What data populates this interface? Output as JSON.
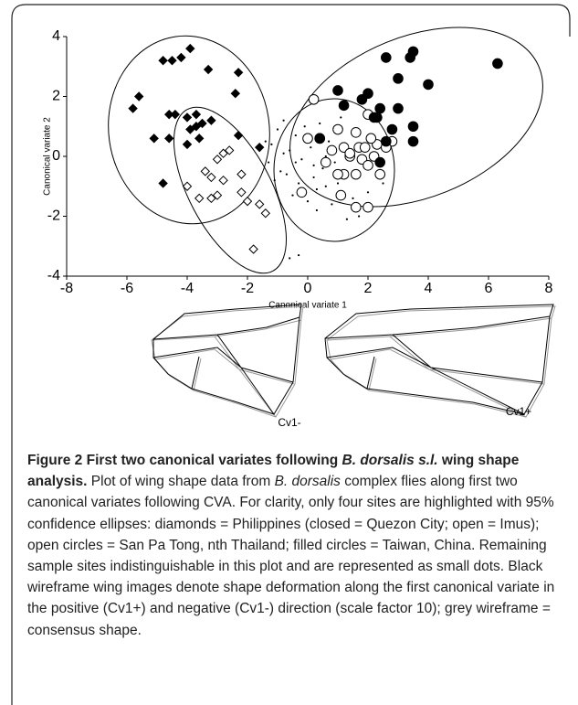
{
  "chart_data": {
    "type": "scatter",
    "xlabel": "Canonical variate 1",
    "ylabel": "Canonical variate 2",
    "xlim": [
      -8,
      8
    ],
    "ylim": [
      -4,
      4
    ],
    "xticks": [
      -8,
      -6,
      -4,
      -2,
      0,
      2,
      4,
      6,
      8
    ],
    "yticks": [
      -4,
      -2,
      0,
      2,
      4
    ],
    "series": [
      {
        "marker": "dot",
        "filled": true,
        "color": "#000",
        "x": [
          -1.4,
          -1.3,
          -1.2,
          -1.0,
          -0.9,
          -0.8,
          -0.7,
          -0.6,
          -0.5,
          -0.4,
          -0.3,
          -0.2,
          -0.1,
          0.0,
          0.1,
          0.2,
          0.3,
          0.4,
          0.5,
          0.6,
          0.7,
          0.8,
          0.9,
          1.0,
          1.1,
          1.3,
          1.5,
          1.7,
          2.0,
          2.5,
          -0.6,
          -0.3,
          0.2,
          0.6,
          0.9,
          -1.1,
          -0.8,
          -0.4,
          0.3,
          1.2
        ],
        "values": [
          0.5,
          -0.2,
          0.4,
          0.9,
          -0.5,
          1.2,
          -0.6,
          0.2,
          -1.3,
          0.7,
          -0.9,
          -0.1,
          1.0,
          -1.5,
          0.3,
          -0.7,
          -1.8,
          1.1,
          -0.4,
          -1.0,
          0.5,
          -1.6,
          -0.2,
          -0.9,
          1.3,
          -2.1,
          -1.4,
          -2.0,
          -1.2,
          -0.9,
          -3.4,
          -3.3,
          -0.3,
          0.0,
          0.8,
          -0.8,
          0.1,
          -0.2,
          -1.1,
          0.4
        ]
      },
      {
        "marker": "diamond",
        "filled": true,
        "color": "#000",
        "x": [
          -5.8,
          -5.6,
          -4.8,
          -4.5,
          -4.2,
          -3.9,
          -3.3,
          -2.4,
          -2.3,
          -5.1,
          -4.6,
          -4.4,
          -4.0,
          -3.7,
          -3.5,
          -3.7,
          -3.9,
          -3.6,
          -4.0,
          -4.6,
          -3.2,
          -2.3,
          -1.6,
          -4.8
        ],
        "values": [
          1.6,
          2.0,
          3.2,
          3.2,
          3.3,
          3.6,
          2.9,
          2.1,
          2.8,
          0.6,
          1.4,
          1.4,
          1.3,
          1.0,
          1.1,
          1.4,
          0.9,
          0.6,
          0.4,
          0.6,
          1.2,
          0.7,
          0.3,
          -0.9
        ]
      },
      {
        "marker": "diamond",
        "filled": false,
        "color": "#000",
        "x": [
          -4.0,
          -3.4,
          -3.0,
          -2.8,
          -2.6,
          -3.2,
          -2.8,
          -2.2,
          -3.6,
          -3.0,
          -3.2,
          -2.2,
          -2.0,
          -1.6,
          -1.4,
          -1.8
        ],
        "values": [
          -1.0,
          -0.5,
          -0.1,
          0.1,
          0.2,
          -0.7,
          -0.8,
          -0.6,
          -1.4,
          -1.3,
          -1.4,
          -1.2,
          -1.5,
          -1.6,
          -1.9,
          -3.1
        ]
      },
      {
        "marker": "circle",
        "filled": false,
        "color": "#000",
        "x": [
          0.2,
          0.4,
          0.0,
          1.0,
          1.2,
          1.6,
          2.0,
          1.7,
          1.9,
          2.2,
          1.4,
          1.8,
          2.0,
          2.4,
          1.6,
          0.6,
          1.1,
          1.6,
          2.0,
          -0.2,
          1.2,
          2.8,
          1.4,
          2.3,
          0.8,
          2.6,
          1.0,
          2.1
        ],
        "values": [
          1.9,
          0.6,
          0.6,
          0.9,
          0.3,
          0.8,
          1.4,
          0.3,
          0.3,
          0.0,
          0.0,
          -0.1,
          -0.3,
          -0.6,
          -0.6,
          -0.2,
          -1.3,
          -1.7,
          -1.7,
          -1.2,
          -0.6,
          0.5,
          0.1,
          0.4,
          0.2,
          0.3,
          -0.6,
          0.6
        ]
      },
      {
        "marker": "circle",
        "filled": true,
        "color": "#000",
        "x": [
          1.8,
          1.0,
          2.0,
          2.6,
          3.5,
          3.4,
          3.0,
          4.0,
          6.3,
          3.0,
          2.4,
          2.3,
          2.2,
          3.5,
          3.5,
          0.4,
          2.6,
          2.8,
          2.4,
          1.2
        ],
        "values": [
          1.9,
          2.2,
          2.1,
          3.3,
          3.5,
          3.3,
          2.6,
          2.4,
          3.1,
          1.6,
          1.6,
          1.3,
          1.3,
          1.0,
          0.5,
          0.6,
          0.5,
          0.9,
          -0.2,
          1.7
        ]
      }
    ]
  },
  "wireframes": {
    "left_label": "Cv1-",
    "right_label": "Cv1+"
  },
  "caption": {
    "segments": [
      "Figure 2 First two canonical variates following ",
      "B. dorsalis s.l.",
      " wing shape analysis.",
      " Plot of wing shape data from ",
      "B. dorsalis",
      " complex flies along first two canonical variates following CVA. For clarity, only four sites are highlighted with 95% confidence ellipses: diamonds = Philippines (closed = Quezon City; open = Imus); open circles = San Pa Tong, nth Thailand; filled circles = Taiwan, China. Remaining sample sites indistinguishable in this plot and are represented as small dots. Black wireframe wing images denote shape deformation along the first canonical variate in the positive (Cv1+) and negative (Cv1-) direction (scale factor 10); grey wireframe = consensus shape."
    ]
  }
}
